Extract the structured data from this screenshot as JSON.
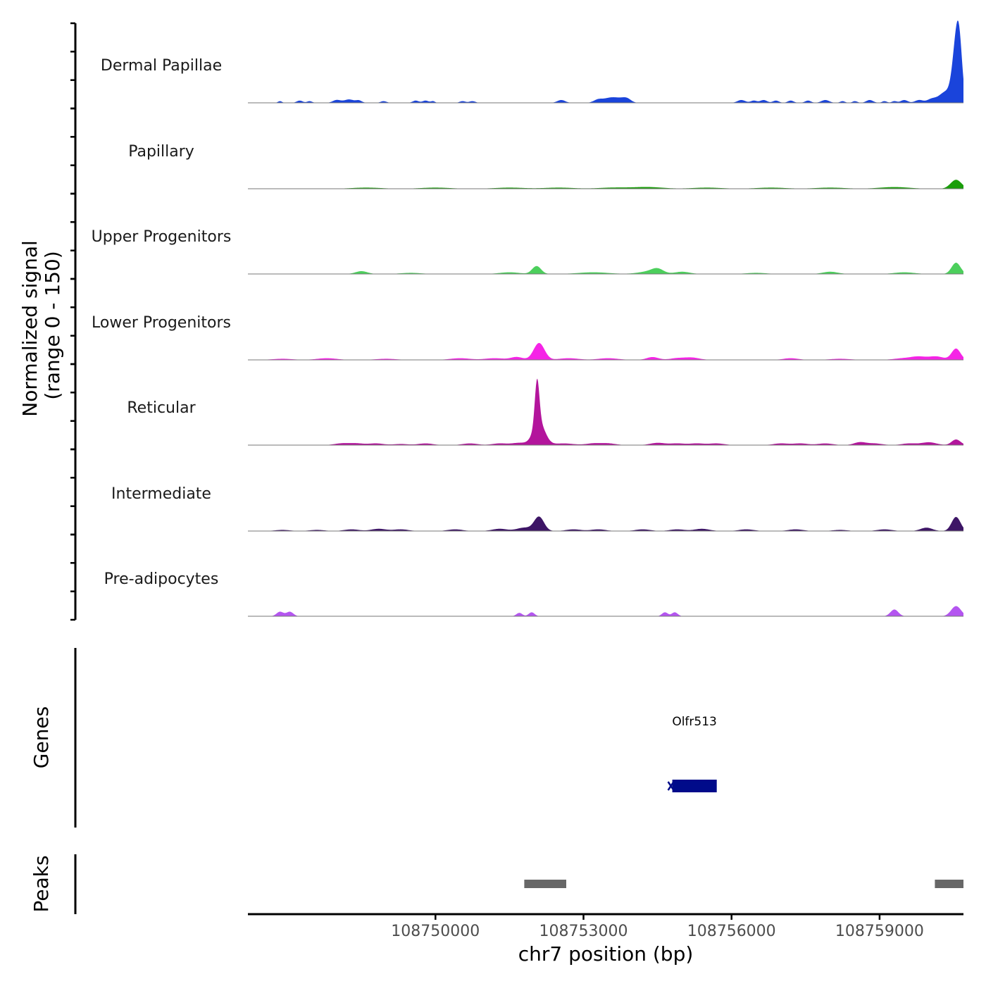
{
  "chart_data": {
    "type": "area",
    "title": "",
    "ylabel": "Normalized signal\n(range 0 - 150)",
    "xlabel": "chr7 position (bp)",
    "ylim": [
      0,
      150
    ],
    "xlim": [
      108746200,
      108760700
    ],
    "x_ticks": [
      108750000,
      108753000,
      108756000,
      108759000
    ],
    "x_tick_labels": [
      "108750000",
      "108753000",
      "108756000",
      "108759000"
    ],
    "tracks": [
      {
        "name": "Dermal Papillae",
        "color": "#1a44db",
        "peaks": [
          [
            108746850,
            3,
            40
          ],
          [
            108747250,
            4,
            60
          ],
          [
            108747450,
            3,
            50
          ],
          [
            108748000,
            5,
            80
          ],
          [
            108748250,
            6,
            100
          ],
          [
            108748450,
            4,
            60
          ],
          [
            108748950,
            3,
            60
          ],
          [
            108749600,
            4,
            60
          ],
          [
            108749800,
            4,
            60
          ],
          [
            108749950,
            3,
            40
          ],
          [
            108750550,
            3,
            60
          ],
          [
            108750750,
            3,
            60
          ],
          [
            108752550,
            5,
            80
          ],
          [
            108753300,
            6,
            90
          ],
          [
            108753500,
            7,
            100
          ],
          [
            108753650,
            6,
            90
          ],
          [
            108753800,
            6,
            90
          ],
          [
            108753900,
            5,
            80
          ],
          [
            108756200,
            5,
            80
          ],
          [
            108756450,
            4,
            60
          ],
          [
            108756650,
            5,
            70
          ],
          [
            108756900,
            4,
            60
          ],
          [
            108757200,
            4,
            60
          ],
          [
            108757550,
            4,
            60
          ],
          [
            108757900,
            5,
            80
          ],
          [
            108758250,
            3,
            50
          ],
          [
            108758500,
            3,
            50
          ],
          [
            108758800,
            5,
            70
          ],
          [
            108759100,
            3,
            50
          ],
          [
            108759300,
            3,
            50
          ],
          [
            108759500,
            5,
            70
          ],
          [
            108759800,
            5,
            80
          ],
          [
            108760050,
            6,
            90
          ],
          [
            108760350,
            20,
            140
          ],
          [
            108760550,
            92,
            75
          ],
          [
            108760620,
            70,
            60
          ]
        ]
      },
      {
        "name": "Papillary",
        "color": "#1a9e0a",
        "peaks": [
          [
            108748600,
            2,
            300
          ],
          [
            108750000,
            2,
            300
          ],
          [
            108751500,
            2,
            300
          ],
          [
            108752500,
            2,
            300
          ],
          [
            108753600,
            2,
            300
          ],
          [
            108754300,
            3,
            300
          ],
          [
            108755500,
            2,
            300
          ],
          [
            108756800,
            2,
            300
          ],
          [
            108758000,
            2,
            300
          ],
          [
            108759300,
            3,
            300
          ],
          [
            108760550,
            16,
            110
          ]
        ]
      },
      {
        "name": "Upper Progenitors",
        "color": "#4ccf5c",
        "peaks": [
          [
            108748500,
            5,
            120
          ],
          [
            108749500,
            2,
            200
          ],
          [
            108751500,
            3,
            200
          ],
          [
            108752050,
            14,
            90
          ],
          [
            108753200,
            3,
            300
          ],
          [
            108754300,
            4,
            200
          ],
          [
            108754500,
            8,
            120
          ],
          [
            108755000,
            4,
            150
          ],
          [
            108756500,
            2,
            200
          ],
          [
            108758000,
            4,
            150
          ],
          [
            108759500,
            3,
            200
          ],
          [
            108760550,
            20,
            90
          ]
        ]
      },
      {
        "name": "Lower Progenitors",
        "color": "#f524e6",
        "peaks": [
          [
            108746900,
            2,
            200
          ],
          [
            108747800,
            3,
            200
          ],
          [
            108749000,
            2,
            200
          ],
          [
            108750500,
            3,
            200
          ],
          [
            108751200,
            3,
            200
          ],
          [
            108751650,
            5,
            120
          ],
          [
            108752100,
            30,
            110
          ],
          [
            108752700,
            3,
            200
          ],
          [
            108753500,
            3,
            200
          ],
          [
            108754400,
            5,
            120
          ],
          [
            108754900,
            3,
            150
          ],
          [
            108755200,
            4,
            150
          ],
          [
            108757200,
            3,
            150
          ],
          [
            108758200,
            2,
            200
          ],
          [
            108759500,
            3,
            200
          ],
          [
            108759800,
            5,
            150
          ],
          [
            108760150,
            6,
            150
          ],
          [
            108760550,
            20,
            90
          ]
        ]
      },
      {
        "name": "Reticular",
        "color": "#b3159c",
        "peaks": [
          [
            108748100,
            3,
            150
          ],
          [
            108748400,
            3,
            150
          ],
          [
            108748800,
            3,
            150
          ],
          [
            108749300,
            2,
            150
          ],
          [
            108749800,
            3,
            150
          ],
          [
            108750700,
            3,
            150
          ],
          [
            108751300,
            3,
            150
          ],
          [
            108751700,
            4,
            150
          ],
          [
            108752060,
            80,
            45
          ],
          [
            108752100,
            40,
            120
          ],
          [
            108752600,
            3,
            200
          ],
          [
            108753200,
            3,
            150
          ],
          [
            108753500,
            3,
            150
          ],
          [
            108754500,
            4,
            150
          ],
          [
            108754900,
            3,
            150
          ],
          [
            108755300,
            3,
            150
          ],
          [
            108755700,
            3,
            150
          ],
          [
            108757000,
            3,
            150
          ],
          [
            108757400,
            3,
            150
          ],
          [
            108757900,
            3,
            150
          ],
          [
            108758600,
            5,
            120
          ],
          [
            108758900,
            3,
            150
          ],
          [
            108759600,
            3,
            150
          ],
          [
            108760000,
            5,
            150
          ],
          [
            108760550,
            10,
            90
          ]
        ]
      },
      {
        "name": "Intermediate",
        "color": "#3d1566",
        "peaks": [
          [
            108746900,
            2,
            150
          ],
          [
            108747600,
            2,
            150
          ],
          [
            108748300,
            3,
            150
          ],
          [
            108748850,
            4,
            150
          ],
          [
            108749300,
            3,
            150
          ],
          [
            108750400,
            3,
            150
          ],
          [
            108751300,
            4,
            150
          ],
          [
            108751800,
            6,
            150
          ],
          [
            108752100,
            25,
            100
          ],
          [
            108752800,
            3,
            150
          ],
          [
            108753300,
            3,
            150
          ],
          [
            108754200,
            3,
            150
          ],
          [
            108754900,
            3,
            150
          ],
          [
            108755400,
            4,
            150
          ],
          [
            108756300,
            3,
            150
          ],
          [
            108757300,
            3,
            150
          ],
          [
            108758200,
            2,
            150
          ],
          [
            108759100,
            3,
            150
          ],
          [
            108759950,
            6,
            120
          ],
          [
            108760550,
            25,
            90
          ]
        ]
      },
      {
        "name": "Pre-adipocytes",
        "color": "#b455f0",
        "peaks": [
          [
            108746850,
            8,
            70
          ],
          [
            108747050,
            8,
            70
          ],
          [
            108751700,
            6,
            60
          ],
          [
            108751950,
            7,
            60
          ],
          [
            108754650,
            7,
            60
          ],
          [
            108754850,
            7,
            60
          ],
          [
            108759300,
            12,
            80
          ],
          [
            108760550,
            18,
            100
          ]
        ]
      }
    ],
    "genes": [
      {
        "name": "Olfr513",
        "start": 108754800,
        "end": 108755700,
        "strand": "-",
        "color": "#000b8a"
      }
    ],
    "peaks_track": [
      {
        "start": 108751800,
        "end": 108752650
      },
      {
        "start": 108760120,
        "end": 108760700
      }
    ],
    "track_labels": {
      "genes": "Genes",
      "peaks": "Peaks"
    }
  }
}
